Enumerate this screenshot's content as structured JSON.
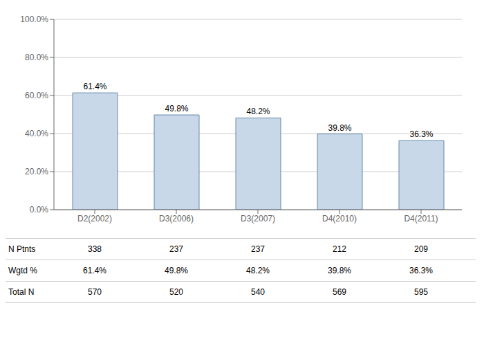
{
  "chart_data": {
    "type": "bar",
    "categories": [
      "D2(2002)",
      "D3(2006)",
      "D3(2007)",
      "D4(2010)",
      "D4(2011)"
    ],
    "values": [
      61.4,
      49.8,
      48.2,
      39.8,
      36.3
    ],
    "value_labels": [
      "61.4%",
      "49.8%",
      "48.2%",
      "39.8%",
      "36.3%"
    ],
    "data_labels": true,
    "color": "#c8d8e8",
    "ylim": [
      0,
      100
    ],
    "yticks": [
      {
        "value": 0,
        "label": "0.0%"
      },
      {
        "value": 20,
        "label": "20.0%"
      },
      {
        "value": 40,
        "label": "40.0%"
      },
      {
        "value": 60,
        "label": "60.0%"
      },
      {
        "value": 80,
        "label": "80.0%"
      },
      {
        "value": 100,
        "label": "100.0%"
      }
    ],
    "grid": true,
    "table": [
      {
        "label": "N Ptnts",
        "values": [
          338,
          237,
          237,
          212,
          209
        ]
      },
      {
        "label": "Wgtd %",
        "values": [
          "61.4%",
          "49.8%",
          "48.2%",
          "39.8%",
          "36.3%"
        ]
      },
      {
        "label": "Total N",
        "values": [
          570,
          520,
          540,
          569,
          595
        ]
      }
    ]
  }
}
